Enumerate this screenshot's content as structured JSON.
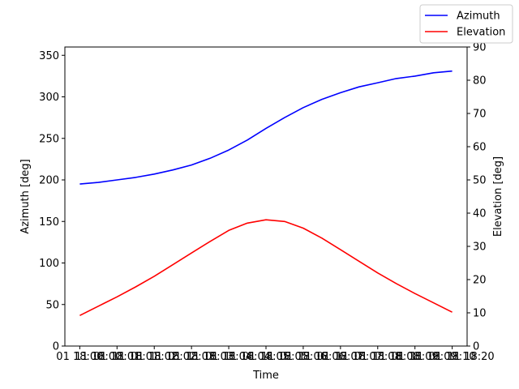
{
  "chart_data": {
    "type": "line",
    "xlabel": "Time",
    "ylabel_left": "Azimuth [deg]",
    "ylabel_right": "Elevation [deg]",
    "x_tick_labels": [
      "01 18:00",
      "01 18:01",
      "01 18:02",
      "01 18:03",
      "01 18:04",
      "01 18:05",
      "01 18:06",
      "01 18:07",
      "01 18:08",
      "01 18:09",
      "01 18:10",
      "11 18:00",
      "11 18:01",
      "11 18:02",
      "11 18:03",
      "11 18:04",
      "11 18:05",
      "11 18:06",
      "11 18:07",
      "11 18:08",
      "11 18:09",
      "11 18:20"
    ],
    "x_tick_labels_shown": [
      "01 18:00",
      "11 18:01",
      "11 18:02",
      "11 18:03",
      "11 18:04",
      "11 18:05",
      "11 18:06",
      "11 18:07",
      "11 18:08",
      "11 18:09",
      "11 18:20"
    ],
    "x_minutes": [
      0,
      0.5,
      1,
      1.5,
      2,
      2.5,
      3,
      3.5,
      4,
      4.5,
      5,
      5.5,
      6,
      6.5,
      7,
      7.5,
      8,
      8.5,
      9,
      9.5,
      10
    ],
    "xlim": [
      -0.4,
      10.4
    ],
    "left_axis": {
      "ylim": [
        0,
        360
      ],
      "ticks": [
        0,
        50,
        100,
        150,
        200,
        250,
        300,
        350
      ]
    },
    "right_axis": {
      "ylim": [
        0,
        90
      ],
      "ticks": [
        0,
        10,
        20,
        30,
        40,
        50,
        60,
        70,
        80,
        90
      ]
    },
    "series": [
      {
        "name": "Azimuth",
        "axis": "left",
        "color": "#0000ff",
        "values": [
          195,
          197,
          200,
          203,
          207,
          212,
          218,
          226,
          236,
          248,
          262,
          275,
          287,
          297,
          305,
          312,
          317,
          322,
          325,
          329,
          331
        ]
      },
      {
        "name": "Elevation",
        "axis": "right",
        "color": "#ff0000",
        "values": [
          9.2,
          12,
          14.8,
          17.8,
          21,
          24.5,
          28,
          31.5,
          34.8,
          37,
          38,
          37.5,
          35.5,
          32.5,
          29,
          25.5,
          22,
          18.8,
          15.8,
          13,
          10.2
        ]
      }
    ],
    "legend": "top-right",
    "grid": false
  }
}
